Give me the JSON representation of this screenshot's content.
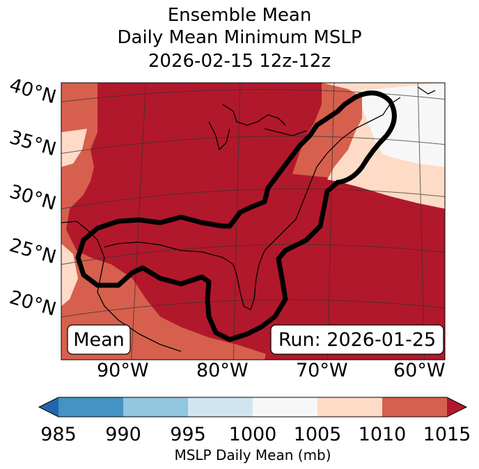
{
  "title": {
    "line1": "Ensemble Mean",
    "line2": "Daily Mean Minimum MSLP",
    "line3": "2026-02-15 12z-12z"
  },
  "map": {
    "lat_labels": [
      "40°N",
      "35°N",
      "30°N",
      "25°N",
      "20°N"
    ],
    "lon_labels": [
      "90°W",
      "80°W",
      "70°W",
      "60°W"
    ],
    "mean_box": "Mean",
    "run_box": "Run: 2026-01-25"
  },
  "colorbar": {
    "ticks": [
      "985",
      "990",
      "995",
      "1000",
      "1005",
      "1010",
      "1015"
    ],
    "label": "MSLP Daily Mean (mb)",
    "colors": [
      "#2166ac",
      "#4393c3",
      "#92c5de",
      "#d1e5f0",
      "#f7f7f7",
      "#fddbc7",
      "#d6604d",
      "#b2182b"
    ]
  },
  "colors": {
    "dark_red": "#b2182b",
    "red": "#d6604d",
    "light_red": "#fddbc7",
    "white": "#f7f7f7"
  }
}
